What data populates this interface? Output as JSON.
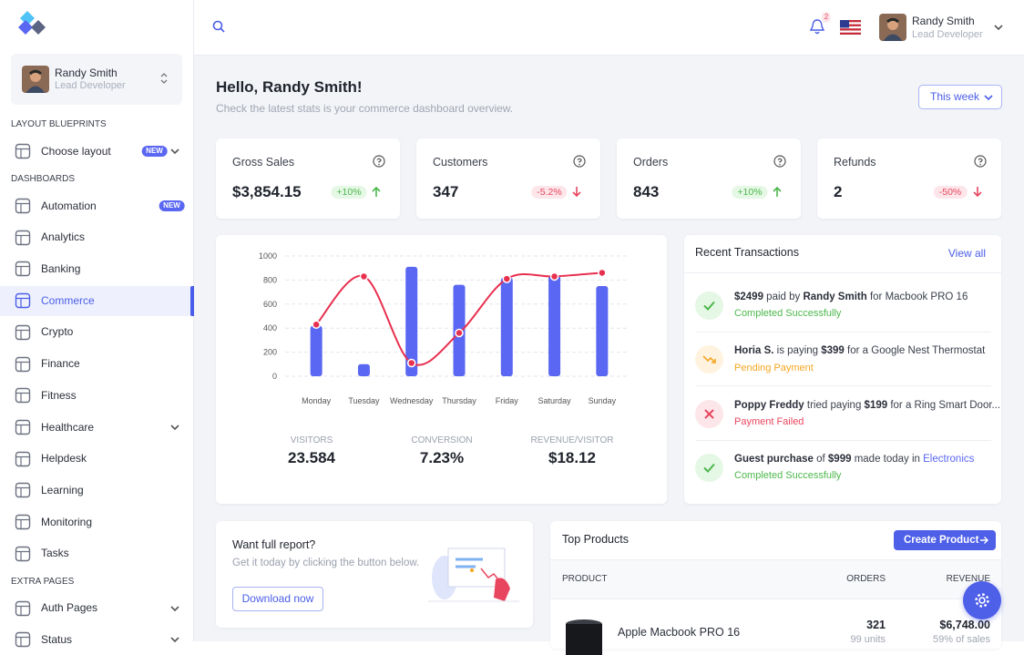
{
  "sidebar": {
    "user": {
      "name": "Randy Smith",
      "role": "Lead Developer"
    },
    "sections": [
      {
        "title": "LAYOUT BLUEPRINTS",
        "items": [
          {
            "label": "Choose layout",
            "badge": "NEW",
            "expandable": true
          }
        ]
      },
      {
        "title": "DASHBOARDS",
        "items": [
          {
            "label": "Automation",
            "badge": "NEW"
          },
          {
            "label": "Analytics"
          },
          {
            "label": "Banking"
          },
          {
            "label": "Commerce",
            "active": true
          },
          {
            "label": "Crypto"
          },
          {
            "label": "Finance"
          },
          {
            "label": "Fitness"
          },
          {
            "label": "Healthcare",
            "expandable": true
          },
          {
            "label": "Helpdesk"
          },
          {
            "label": "Learning"
          },
          {
            "label": "Monitoring"
          },
          {
            "label": "Tasks"
          }
        ]
      },
      {
        "title": "EXTRA PAGES",
        "items": [
          {
            "label": "Auth Pages",
            "expandable": true
          },
          {
            "label": "Status",
            "expandable": true
          }
        ]
      }
    ]
  },
  "header": {
    "notifications": 2,
    "user": {
      "name": "Randy Smith",
      "role": "Lead Developer"
    }
  },
  "greeting": {
    "title": "Hello, Randy Smith!",
    "subtitle": "Check the latest stats is your commerce dashboard overview.",
    "period": "This week"
  },
  "stats": [
    {
      "label": "Gross Sales",
      "value": "$3,854.15",
      "change": "+10%",
      "trend": "up"
    },
    {
      "label": "Customers",
      "value": "347",
      "change": "-5.2%",
      "trend": "down"
    },
    {
      "label": "Orders",
      "value": "843",
      "change": "+10%",
      "trend": "up"
    },
    {
      "label": "Refunds",
      "value": "2",
      "change": "-50%",
      "trend": "down"
    }
  ],
  "chart_data": {
    "type": "bar",
    "categories": [
      "Monday",
      "Tuesday",
      "Wednesday",
      "Thursday",
      "Friday",
      "Saturday",
      "Sunday"
    ],
    "series": [
      {
        "type": "bar",
        "color": "#5a67f2",
        "values": [
          420,
          100,
          910,
          760,
          820,
          840,
          750
        ]
      },
      {
        "type": "line",
        "color": "#e8304f",
        "values": [
          430,
          830,
          110,
          360,
          810,
          830,
          860
        ]
      }
    ],
    "ylim": [
      0,
      1000
    ],
    "yticks": [
      0,
      200,
      400,
      600,
      800,
      1000
    ],
    "grid": true
  },
  "chart_metrics": [
    {
      "label": "VISITORS",
      "value": "23.584"
    },
    {
      "label": "CONVERSION",
      "value": "7.23%"
    },
    {
      "label": "REVENUE/VISITOR",
      "value": "$18.12"
    }
  ],
  "transactions": {
    "title": "Recent Transactions",
    "action": "View all",
    "items": [
      {
        "kind": "success",
        "status": "Completed Successfully",
        "parts": [
          {
            "text": "$2499",
            "style": "bold"
          },
          {
            "text": " paid by ",
            "style": "normal"
          },
          {
            "text": "Randy Smith",
            "style": "bold"
          },
          {
            "text": " for Macbook PRO 16",
            "style": "normal"
          }
        ]
      },
      {
        "kind": "pending",
        "status": "Pending Payment",
        "parts": [
          {
            "text": "Horia S.",
            "style": "bold"
          },
          {
            "text": " is paying ",
            "style": "normal"
          },
          {
            "text": "$399",
            "style": "bold"
          },
          {
            "text": " for a Google Nest Thermostat",
            "style": "normal"
          }
        ]
      },
      {
        "kind": "failed",
        "status": "Payment Failed",
        "parts": [
          {
            "text": "Poppy Freddy",
            "style": "bold"
          },
          {
            "text": " tried paying ",
            "style": "normal"
          },
          {
            "text": "$199",
            "style": "bold"
          },
          {
            "text": " for a Ring Smart Door...",
            "style": "normal"
          }
        ]
      },
      {
        "kind": "success",
        "status": "Completed Successfully",
        "parts": [
          {
            "text": "Guest purchase",
            "style": "bold"
          },
          {
            "text": " of ",
            "style": "normal"
          },
          {
            "text": "$999",
            "style": "bold"
          },
          {
            "text": " made today in ",
            "style": "normal"
          },
          {
            "text": "Electronics",
            "style": "link"
          }
        ]
      }
    ]
  },
  "report": {
    "title": "Want full report?",
    "text": "Get it today by clicking the button below.",
    "button": "Download now"
  },
  "products": {
    "title": "Top Products",
    "button": "Create Product",
    "columns": [
      "PRODUCT",
      "ORDERS",
      "REVENUE"
    ],
    "rows": [
      {
        "name": "Apple Macbook PRO 16",
        "orders": "321",
        "units": "99 units",
        "revenue": "$6,748.00",
        "share": "59% of sales"
      }
    ]
  }
}
